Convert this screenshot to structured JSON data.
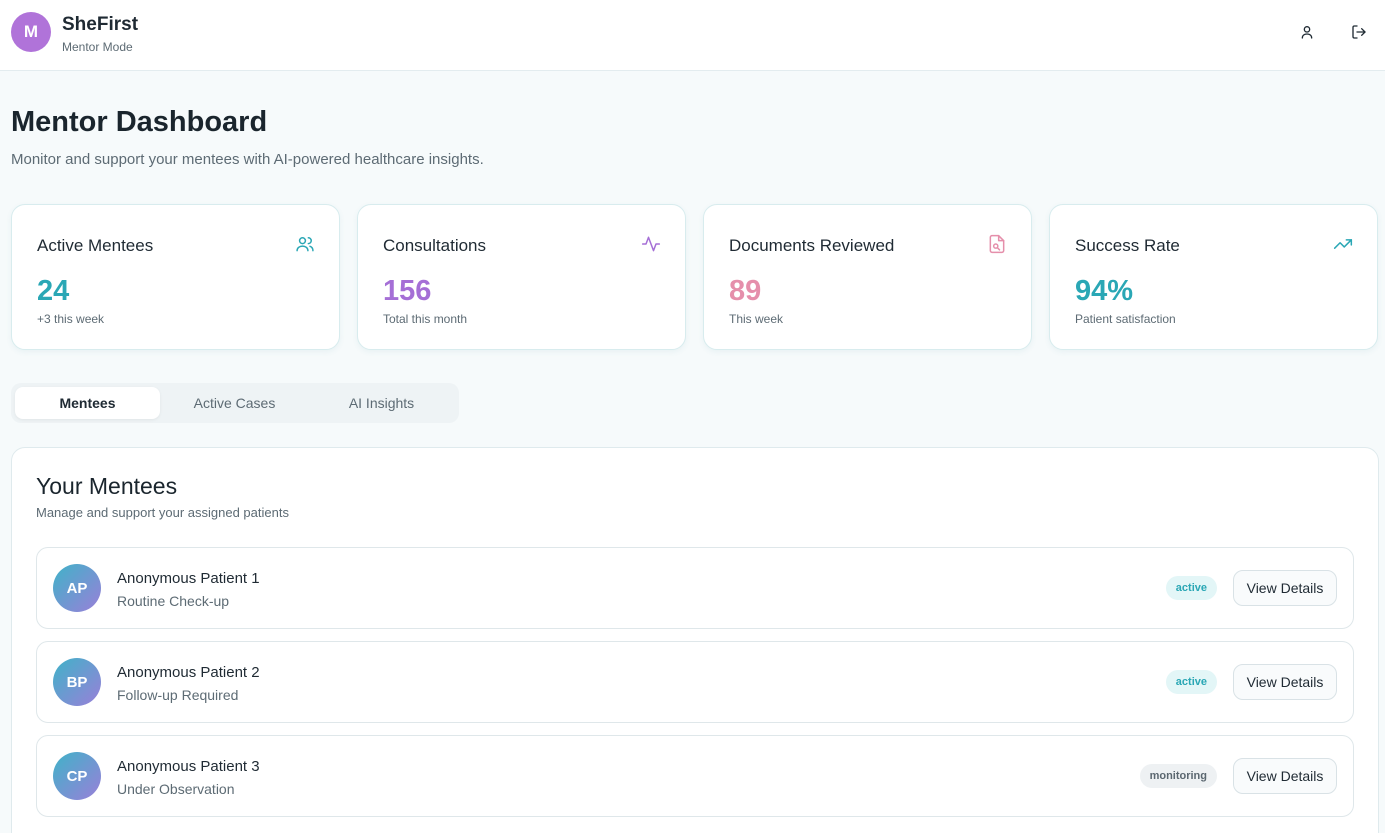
{
  "header": {
    "logo_initial": "M",
    "app_name": "SheFirst",
    "mode": "Mentor Mode",
    "icons": {
      "profile": "user-icon",
      "logout": "logout-icon"
    }
  },
  "page": {
    "title": "Mentor Dashboard",
    "subtitle": "Monitor and support your mentees with AI-powered healthcare insights."
  },
  "stats": [
    {
      "label": "Active Mentees",
      "value": "24",
      "note": "+3 this week",
      "icon": "users-icon",
      "color": "#2aa7b5"
    },
    {
      "label": "Consultations",
      "value": "156",
      "note": "Total this month",
      "icon": "activity-icon",
      "color": "#a56fd6"
    },
    {
      "label": "Documents Reviewed",
      "value": "89",
      "note": "This week",
      "icon": "file-search-icon",
      "color": "#e58fab"
    },
    {
      "label": "Success Rate",
      "value": "94%",
      "note": "Patient satisfaction",
      "icon": "trending-up-icon",
      "color": "#2aa7b5"
    }
  ],
  "tabs": [
    {
      "label": "Mentees",
      "active": true
    },
    {
      "label": "Active Cases",
      "active": false
    },
    {
      "label": "AI Insights",
      "active": false
    }
  ],
  "mentees_panel": {
    "title": "Your Mentees",
    "subtitle": "Manage and support your assigned patients",
    "button_label": "View Details",
    "items": [
      {
        "initials": "AP",
        "name": "Anonymous Patient 1",
        "status": "Routine Check-up",
        "badge": "active"
      },
      {
        "initials": "BP",
        "name": "Anonymous Patient 2",
        "status": "Follow-up Required",
        "badge": "active"
      },
      {
        "initials": "CP",
        "name": "Anonymous Patient 3",
        "status": "Under Observation",
        "badge": "monitoring"
      }
    ]
  }
}
